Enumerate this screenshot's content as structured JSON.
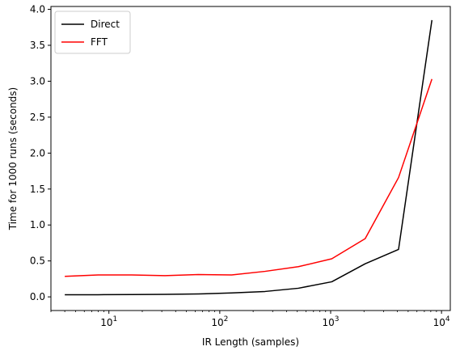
{
  "chart_data": {
    "type": "line",
    "xscale": "log",
    "xlabel": "IR Length (samples)",
    "ylabel": "Time for 1000 runs (seconds)",
    "xlim": [
      3,
      12000
    ],
    "ylim": [
      -0.19,
      4.04
    ],
    "xticks": [
      {
        "value": 10,
        "base": "10",
        "exp": "1"
      },
      {
        "value": 100,
        "base": "10",
        "exp": "2"
      },
      {
        "value": 1000,
        "base": "10",
        "exp": "3"
      },
      {
        "value": 10000,
        "base": "10",
        "exp": "4"
      }
    ],
    "yticks": [
      "0.0",
      "0.5",
      "1.0",
      "1.5",
      "2.0",
      "2.5",
      "3.0",
      "3.5",
      "4.0"
    ],
    "grid": false,
    "legend_position": "upper-left",
    "series": [
      {
        "name": "Direct",
        "color": "#000000",
        "x": [
          4,
          8,
          16,
          32,
          64,
          128,
          256,
          512,
          1024,
          2048,
          4096,
          8192
        ],
        "y": [
          0.03,
          0.03,
          0.032,
          0.035,
          0.04,
          0.055,
          0.075,
          0.12,
          0.21,
          0.46,
          0.66,
          3.85
        ]
      },
      {
        "name": "FFT",
        "color": "#ff0000",
        "x": [
          4,
          8,
          16,
          32,
          64,
          128,
          256,
          512,
          1024,
          2048,
          4096,
          8192
        ],
        "y": [
          0.285,
          0.305,
          0.305,
          0.295,
          0.31,
          0.305,
          0.355,
          0.42,
          0.53,
          0.81,
          1.66,
          3.03
        ]
      }
    ]
  }
}
